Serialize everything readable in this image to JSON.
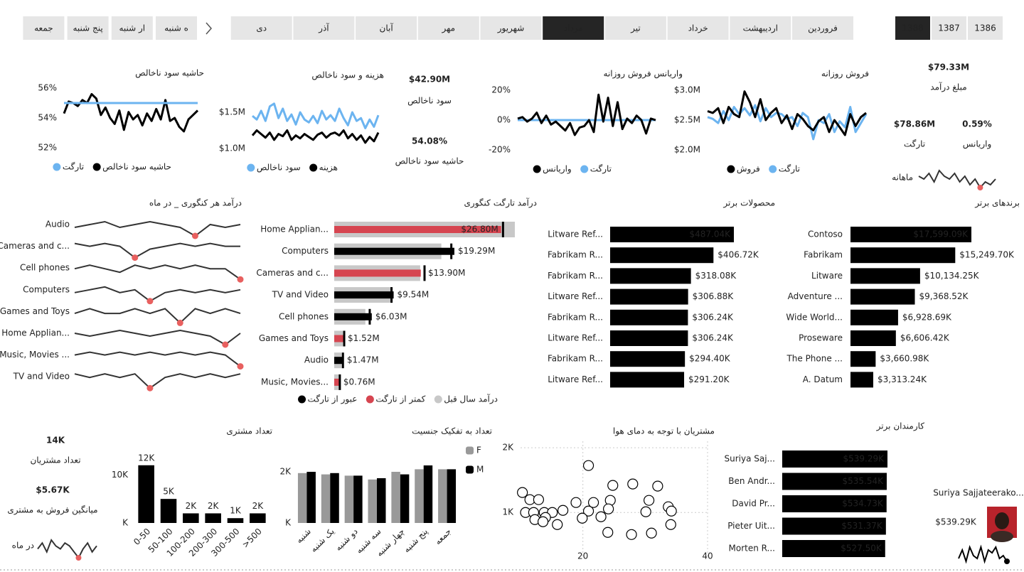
{
  "slicers": {
    "weekdays": {
      "items": [
        "ه شنبه",
        "ار شنبه",
        "پنج شنبه",
        "جمعه"
      ]
    },
    "months": {
      "items": [
        "فروردین",
        "اردیبهشت",
        "خرداد",
        "تیر",
        "مرداد",
        "شهریور",
        "مهر",
        "آبان",
        "آذر",
        "دی"
      ],
      "selected": 4
    },
    "years": {
      "items": [
        "1386",
        "1387",
        "1388"
      ],
      "selected": 2
    }
  },
  "kpis": [
    {
      "value": "$79.33M",
      "label": "مبلغ درآمد"
    },
    {
      "value": "$78.86M",
      "label": "تارگت"
    },
    {
      "value": "0.59%",
      "label": "واریانس",
      "color": "#22dd44"
    },
    {
      "value": "$42.90M",
      "label": "سود ناخالص"
    },
    {
      "value": "54.08%",
      "label": "حاشیه سود ناخالص"
    },
    {
      "value": "14K",
      "label": "تعداد مشتریان"
    },
    {
      "value": "$5.67K",
      "label": "میانگین فروش به مشتری"
    }
  ],
  "employee_card": {
    "name": "Suriya Sajjateerako...",
    "value": "$539.29K"
  },
  "chart_data": [
    {
      "type": "line",
      "title": "فروش روزانه",
      "ylim": [
        2,
        3
      ],
      "yticks": [
        {
          "value": 2,
          "label": "$2.0M"
        },
        {
          "value": 2.5,
          "label": "$2.5M"
        },
        {
          "value": 3,
          "label": "$3.0M"
        }
      ],
      "series": [
        {
          "name": "تارگت",
          "color": "#6cb4f0",
          "values": [
            2.55,
            2.52,
            2.45,
            2.65,
            2.5,
            2.72,
            2.6,
            2.7,
            2.58,
            2.75,
            2.48,
            2.7,
            2.55,
            2.62,
            2.6,
            2.52,
            2.55,
            2.4,
            2.62,
            2.55,
            2.18,
            2.5,
            2.45,
            2.6,
            2.3,
            2.48,
            2.38,
            2.72,
            2.3,
            2.45,
            2.6
          ]
        },
        {
          "name": "فروش",
          "color": "#000000",
          "values": [
            2.65,
            2.62,
            2.7,
            2.45,
            2.72,
            2.6,
            2.55,
            2.98,
            2.8,
            2.55,
            2.85,
            2.5,
            2.62,
            2.7,
            2.45,
            2.58,
            2.35,
            2.6,
            2.52,
            2.4,
            2.33,
            2.48,
            2.55,
            2.3,
            2.5,
            2.38,
            2.25,
            2.6,
            2.4,
            2.55,
            2.62
          ]
        }
      ]
    },
    {
      "type": "line",
      "title": "واریانس فروش روزانه",
      "ylim": [
        -20,
        20
      ],
      "yticks": [
        {
          "value": -20,
          "label": "-20%"
        },
        {
          "value": 0,
          "label": "0%"
        },
        {
          "value": 20,
          "label": "20%"
        }
      ],
      "series": [
        {
          "name": "تارگت",
          "color": "#6cb4f0",
          "values": [
            0,
            0,
            0,
            0,
            0,
            0,
            0,
            0,
            0,
            0,
            0,
            0,
            0,
            0,
            0,
            0,
            0,
            0,
            0,
            0,
            0,
            0,
            0,
            0,
            0,
            0,
            0,
            0,
            0,
            0
          ]
        },
        {
          "name": "واریانس",
          "color": "#000000",
          "values": [
            1,
            2,
            -1,
            1,
            5,
            -2,
            3,
            -3,
            -1,
            -4,
            -7,
            -2,
            -10,
            -5,
            -4,
            0,
            -8,
            17,
            -1,
            15,
            -4,
            12,
            -6,
            1,
            -2,
            3,
            0,
            -9,
            1,
            0
          ]
        }
      ]
    },
    {
      "type": "line",
      "title": "هزینه و سود ناخالص",
      "ylim": [
        1,
        1.8
      ],
      "yticks": [
        {
          "value": 1,
          "label": "$1.0M"
        },
        {
          "value": 1.5,
          "label": "$1.5M"
        }
      ],
      "series": [
        {
          "name": "هزینه",
          "color": "#000000",
          "values": [
            1.18,
            1.25,
            1.2,
            1.15,
            1.22,
            1.12,
            1.2,
            1.17,
            1.25,
            1.12,
            1.18,
            1.14,
            1.2,
            1.16,
            1.12,
            1.19,
            1.22,
            1.15,
            1.2,
            1.22,
            1.18,
            1.25,
            1.14,
            1.2,
            1.12,
            1.18,
            1.08,
            1.16,
            1.1,
            1.22
          ]
        },
        {
          "name": "سود ناخالص",
          "color": "#6cb4f0",
          "values": [
            1.45,
            1.4,
            1.52,
            1.38,
            1.58,
            1.62,
            1.42,
            1.55,
            1.38,
            1.47,
            1.33,
            1.5,
            1.4,
            1.36,
            1.45,
            1.35,
            1.52,
            1.4,
            1.46,
            1.38,
            1.55,
            1.42,
            1.32,
            1.5,
            1.38,
            1.42,
            1.28,
            1.4,
            1.3,
            1.46
          ]
        }
      ]
    },
    {
      "type": "line",
      "title": "حاشیه سود ناخالص",
      "ylim": [
        52,
        56
      ],
      "yticks": [
        {
          "value": 52,
          "label": "52%"
        },
        {
          "value": 54,
          "label": "54%"
        },
        {
          "value": 56,
          "label": "56%"
        }
      ],
      "series": [
        {
          "name": "حاشیه سود ناخالص",
          "color": "#000000",
          "values": [
            54.3,
            55.1,
            55,
            54.8,
            55.2,
            55,
            55.6,
            55.3,
            54.2,
            54.7,
            54,
            53.6,
            54.5,
            53.2,
            54.4,
            53.9,
            54.2,
            53.5,
            54.3,
            53.8,
            54.6,
            53.9,
            55.2,
            53.8,
            54,
            53.4,
            53.1,
            53.9,
            54.2,
            54.5
          ]
        },
        {
          "name": "تارگت",
          "color": "#6cb4f0",
          "values": [
            55,
            55,
            55,
            55,
            55,
            55,
            55,
            55,
            55,
            55,
            55,
            55,
            55,
            55,
            55,
            55,
            55,
            55,
            55,
            55,
            55,
            55,
            55,
            55,
            55,
            55,
            55,
            55,
            55,
            55
          ]
        }
      ]
    },
    {
      "type": "sparkline",
      "label": "ماهانه",
      "color": "#333333",
      "dot_color": "#e8605f",
      "highlight": "min",
      "values": [
        5,
        4,
        6,
        3,
        7,
        5,
        4,
        6,
        3,
        5,
        2,
        4,
        1,
        3,
        2,
        4
      ]
    },
    {
      "type": "hbar",
      "title": "برندهای برتر",
      "color": "#000000",
      "categories": [
        "Contoso",
        "Fabrikam",
        "Litware",
        "Adventure ...",
        "Wide World...",
        "Proseware",
        "The Phone ...",
        "A. Datum"
      ],
      "values": [
        17599.09,
        15249.7,
        10134.25,
        9368.52,
        6928.69,
        6606.42,
        3660.98,
        3313.24
      ],
      "value_labels": [
        "$17,599.09K",
        "$15,249.70K",
        "$10,134.25K",
        "$9,368.52K",
        "$6,928.69K",
        "$6,606.42K",
        "$3,660.98K",
        "$3,313.24K"
      ]
    },
    {
      "type": "hbar",
      "title": "محصولات برتر",
      "color": "#000000",
      "categories": [
        "Litware Ref...",
        "Fabrikam R...",
        "Fabrikam R...",
        "Litware Ref...",
        "Fabrikam R...",
        "Litware Ref...",
        "Fabrikam R...",
        "Litware Ref..."
      ],
      "values": [
        487.04,
        406.72,
        318.08,
        306.88,
        306.24,
        306.24,
        294.4,
        291.2
      ],
      "value_labels": [
        "$487.04K",
        "$406.72K",
        "$318.08K",
        "$306.88K",
        "$306.24K",
        "$306.24K",
        "$294.40K",
        "$291.20K"
      ]
    },
    {
      "type": "multiples",
      "title": "درآمد هر کنگوری _ در ماه",
      "color": "#333333",
      "dot_color": "#e8605f",
      "series": [
        {
          "name": "Audio",
          "values": [
            5,
            6,
            7,
            5,
            6,
            7,
            6,
            5,
            2,
            6,
            5,
            6
          ]
        },
        {
          "name": "Cameras and c...",
          "values": [
            6,
            5,
            6,
            5,
            1,
            4,
            5,
            6,
            5,
            6,
            5,
            5
          ]
        },
        {
          "name": "Cell phones",
          "values": [
            5,
            6,
            5,
            4,
            6,
            5,
            6,
            5,
            6,
            5,
            5,
            2
          ]
        },
        {
          "name": "Computers",
          "values": [
            5,
            6,
            7,
            5,
            6,
            2,
            5,
            6,
            5,
            6,
            5,
            6
          ]
        },
        {
          "name": "Games and Toys",
          "values": [
            5,
            6,
            5,
            5,
            6,
            5,
            6,
            3,
            6,
            5,
            6,
            5
          ]
        },
        {
          "name": "Home Applian...",
          "values": [
            6,
            5,
            6,
            7,
            6,
            5,
            6,
            7,
            6,
            5,
            2,
            6
          ]
        },
        {
          "name": "Music, Movies ...",
          "values": [
            5,
            6,
            5,
            6,
            5,
            6,
            5,
            6,
            5,
            6,
            5,
            1
          ]
        },
        {
          "name": "TV and Video",
          "values": [
            6,
            5,
            6,
            5,
            6,
            2,
            5,
            6,
            5,
            6,
            5,
            6
          ]
        }
      ]
    },
    {
      "type": "bullet",
      "title": "درآمد تارگت کنگوری",
      "categories": [
        "Home Applian...",
        "Computers",
        "Cameras and c...",
        "TV and Video",
        "Cell phones",
        "Games and Toys",
        "Audio",
        "Music, Movies..."
      ],
      "values": [
        26.8,
        19.29,
        13.9,
        9.54,
        6.03,
        1.52,
        1.47,
        0.76
      ],
      "value_labels": [
        "$26.80M",
        "$19.29M",
        "$13.90M",
        "$9.54M",
        "$6.03M",
        "$1.52M",
        "$1.47M",
        "$0.76M"
      ],
      "targets": [
        27.1,
        18.8,
        14.5,
        9.2,
        5.7,
        1.6,
        1.4,
        0.9
      ],
      "previous": [
        29,
        17.2,
        13.8,
        9.3,
        5,
        1.4,
        1.2,
        0.8
      ],
      "legend": [
        {
          "name": "درآمد سال قبل",
          "color": "#c8c8c8"
        },
        {
          "name": "کمتر از تارگت",
          "color": "#d64550"
        },
        {
          "name": "عبور از تارگت",
          "color": "#000000"
        }
      ]
    },
    {
      "type": "sparkline",
      "label": "در ماه",
      "color": "#333333",
      "dot_color": "#e8605f",
      "highlight": "min",
      "values": [
        4,
        6,
        3,
        7,
        5,
        4,
        6,
        5,
        3,
        1,
        4,
        6,
        3,
        5
      ]
    },
    {
      "type": "bar",
      "title": "تعداد مشتری",
      "color": "#000000",
      "categories": [
        "0-50",
        "50-100",
        "100-200",
        "200-300",
        "300-500",
        ">500"
      ],
      "values": [
        12000,
        5000,
        2000,
        2000,
        1000,
        2000
      ],
      "value_labels": [
        "12K",
        "5K",
        "2K",
        "2K",
        "1K",
        "2K"
      ],
      "ylim": [
        0,
        13000
      ],
      "yticks": [
        {
          "value": 0,
          "label": "K"
        },
        {
          "value": 10000,
          "label": "10K"
        }
      ]
    },
    {
      "type": "grouped",
      "title": "تعداد به تفکیک جنسیت",
      "categories": [
        "شنبه",
        "یک شنبه",
        "دو شنبه",
        "سه شنبه",
        "چهار شنبه",
        "پنج شنبه",
        "جمعه"
      ],
      "ylim": [
        0,
        2500
      ],
      "yticks": [
        {
          "value": 0,
          "label": "K"
        },
        {
          "value": 2000,
          "label": "2K"
        }
      ],
      "series": [
        {
          "name": "F",
          "color": "#999999",
          "values": [
            1950,
            1900,
            1850,
            1700,
            2000,
            2100,
            2100
          ]
        },
        {
          "name": "M",
          "color": "#000000",
          "values": [
            2000,
            1950,
            1850,
            1750,
            1900,
            2250,
            2100
          ]
        }
      ]
    },
    {
      "type": "scatter",
      "title": "مشتریان با توجه به دمای هوا",
      "color": "#000000",
      "grid": true,
      "xlim": [
        10,
        40
      ],
      "ylim": [
        300,
        2100
      ],
      "xticks": [
        20,
        40
      ],
      "yticks": [
        {
          "value": 1000,
          "label": "1K"
        },
        {
          "value": 2000,
          "label": "2K"
        }
      ],
      "x": [
        10.3,
        11.5,
        12.9,
        10.8,
        12.1,
        13.8,
        15.1,
        16.8,
        18.9,
        20.9,
        20.9,
        21.7,
        24.4,
        24.8,
        28,
        32,
        30.6,
        33.7,
        34.2,
        30.1,
        24.1,
        12.3,
        14,
        15.9,
        19.9,
        24,
        27.8,
        31,
        34.1,
        13.6,
        22.9
      ],
      "values": [
        1308,
        1198,
        1198,
        1000,
        1000,
        1000,
        1000,
        1033,
        1154,
        1022,
        1725,
        1154,
        1187,
        1418,
        1440,
        1407,
        1187,
        1088,
        1022,
        1011,
        1055,
        890,
        923,
        813,
        912,
        692,
        659,
        681,
        813,
        857,
        934
      ]
    },
    {
      "type": "hbar",
      "title": "کارمندان برتر",
      "color": "#000000",
      "inside": true,
      "categories": [
        "Suriya Saj...",
        "Ben Andr...",
        "David Pr...",
        "Pieter Uit...",
        "Morten R..."
      ],
      "values": [
        539.29,
        535.54,
        534.73,
        531.37,
        527.5
      ],
      "value_labels": [
        "$539.29K",
        "$535.54K",
        "$534.73K",
        "$531.37K",
        "$527.50K"
      ]
    },
    {
      "type": "sparkline",
      "color": "#000000",
      "dot_color": "#000000",
      "highlight": "last",
      "values": [
        2,
        5,
        1,
        6,
        3,
        2,
        6,
        1,
        5,
        4,
        6,
        2,
        3,
        1
      ]
    }
  ]
}
